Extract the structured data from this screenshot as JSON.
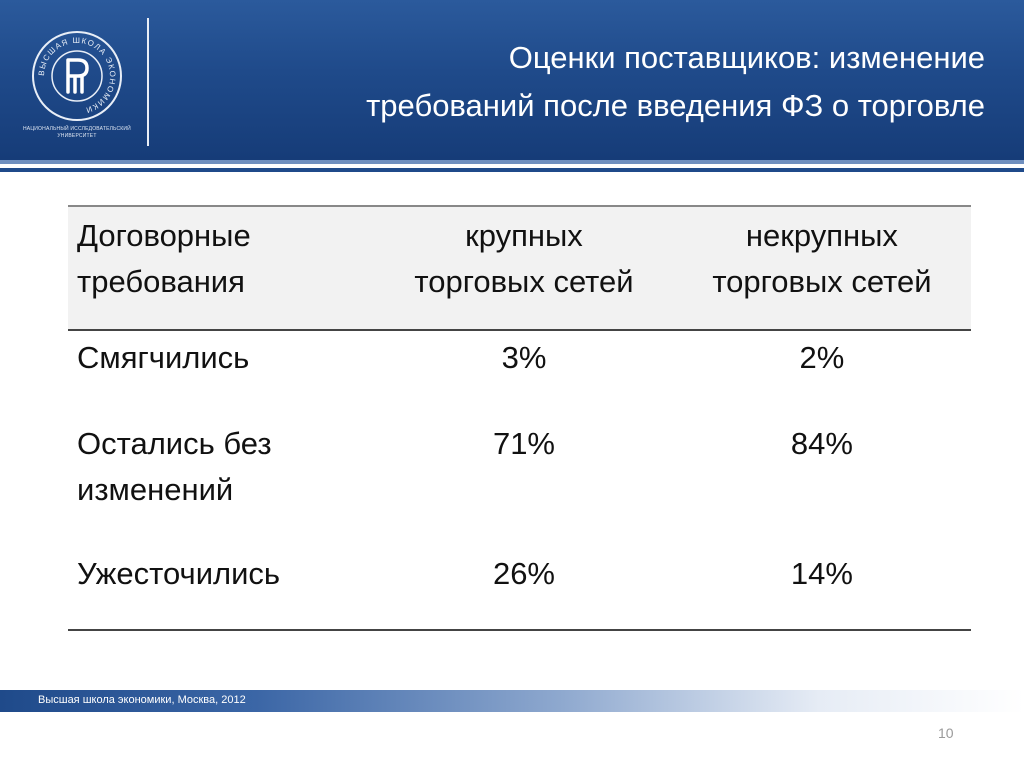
{
  "slide": {
    "title_line1": "Оценки поставщиков: изменение",
    "title_line2": "требований после введения ФЗ о торговле",
    "logo_icon": "hse-university-logo-icon",
    "logo_caption_line1": "НАЦИОНАЛЬНЫЙ ИССЛЕДОВАТЕЛЬСКИЙ",
    "logo_caption_line2": "УНИВЕРСИТЕТ",
    "logo_ring_text": "ВЫСШАЯ ШКОЛА ЭКОНОМИКИ",
    "footer": "Высшая школа экономики, Москва, 2012",
    "page_number": "10",
    "colors": {
      "header_blue": "#1f4a8a",
      "text": "#111111",
      "header_row_bg": "#f2f2f2"
    }
  },
  "table": {
    "headers": {
      "col1_line1": "Договорные",
      "col1_line2": "требования",
      "col2_line1": "крупных",
      "col2_line2": "торговых сетей",
      "col3_line1": "некрупных",
      "col3_line2": "торговых сетей"
    },
    "rows": [
      {
        "label_line1": "Смягчились",
        "label_line2": "",
        "large": "3%",
        "small": "2%"
      },
      {
        "label_line1": "Остались без",
        "label_line2": "изменений",
        "large": "71%",
        "small": "84%"
      },
      {
        "label_line1": "Ужесточились",
        "label_line2": "",
        "large": "26%",
        "small": "14%"
      }
    ]
  }
}
